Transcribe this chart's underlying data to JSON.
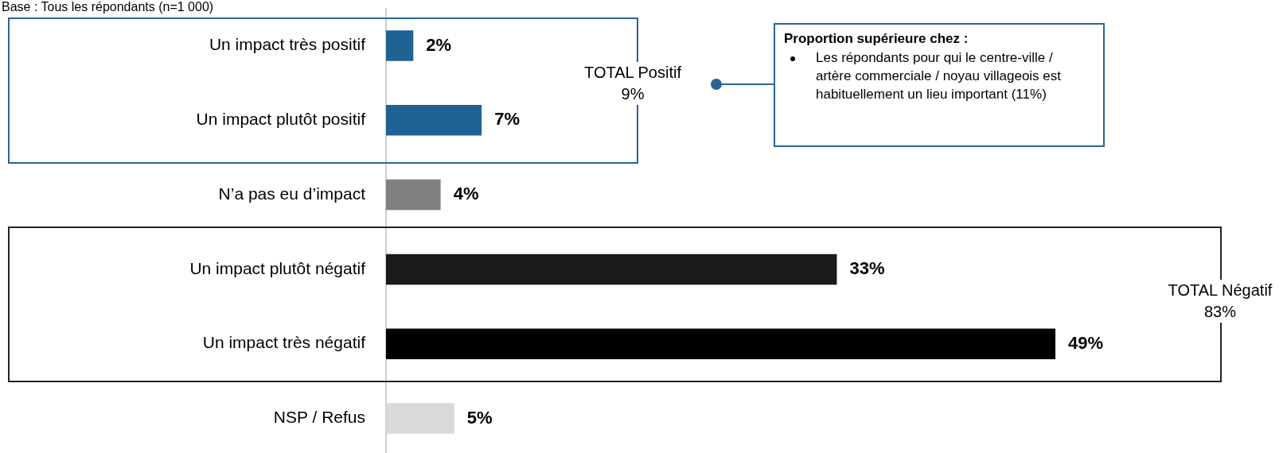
{
  "chart_data": {
    "type": "bar",
    "orientation": "horizontal",
    "categories": [
      "Un impact très positif",
      "Un impact plutôt positif",
      "N’a pas eu d’impact",
      "Un impact plutôt négatif",
      "Un impact très négatif",
      "NSP / Refus"
    ],
    "values": [
      2,
      7,
      4,
      33,
      49,
      5
    ],
    "colors": [
      "#1f6394",
      "#1f6394",
      "#808080",
      "#1a1a1a",
      "#000000",
      "#d9d9d9"
    ],
    "value_labels": [
      "2%",
      "7%",
      "4%",
      "33%",
      "49%",
      "5%"
    ],
    "annotations": [
      "Base : Tous les répondants (n=1 000)",
      "TOTAL Positif 9%",
      "TOTAL Négatif 83%",
      "Proportion supérieure chez :",
      "Les répondants pour qui le centre-ville / artère commerciale / noyau villageois est habituellement un lieu important (11%)"
    ],
    "legend": false
  }
}
